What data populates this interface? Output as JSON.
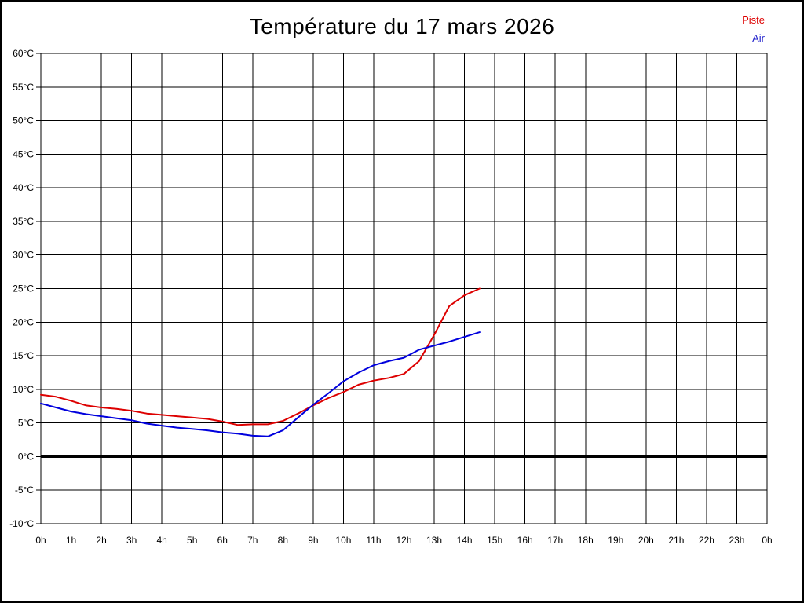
{
  "title": "Température du 17 mars 2026",
  "legend": {
    "items": [
      {
        "label": "Piste",
        "color": "#dd0000"
      },
      {
        "label": "Air",
        "color": "#2222cc"
      }
    ]
  },
  "chart_data": {
    "type": "line",
    "title": "Température du 17 mars 2026",
    "xlabel": "",
    "ylabel": "",
    "xlim": [
      0,
      24
    ],
    "ylim": [
      -10,
      60
    ],
    "x_tick_step": 1,
    "y_tick_step": 5,
    "grid": true,
    "zero_line_value": 0,
    "legend_position": "top-right",
    "x_tick_labels": [
      "0h",
      "1h",
      "2h",
      "3h",
      "4h",
      "5h",
      "6h",
      "7h",
      "8h",
      "9h",
      "10h",
      "11h",
      "12h",
      "13h",
      "14h",
      "15h",
      "16h",
      "17h",
      "18h",
      "19h",
      "20h",
      "21h",
      "22h",
      "23h",
      "0h"
    ],
    "y_tick_labels": [
      "60°C",
      "55°C",
      "50°C",
      "45°C",
      "40°C",
      "35°C",
      "30°C",
      "25°C",
      "20°C",
      "15°C",
      "10°C",
      "5°C",
      "0°C",
      "-5°C",
      "-10°C"
    ],
    "x": [
      0,
      0.5,
      1,
      1.5,
      2,
      2.5,
      3,
      3.5,
      4,
      4.5,
      5,
      5.5,
      6,
      6.5,
      7,
      7.5,
      8,
      8.5,
      9,
      9.5,
      10,
      10.5,
      11,
      11.5,
      12,
      12.5,
      13,
      13.5,
      14,
      14.5
    ],
    "series": [
      {
        "name": "Piste",
        "color": "#dd0000",
        "values": [
          9.2,
          8.9,
          8.3,
          7.6,
          7.3,
          7.1,
          6.8,
          6.4,
          6.2,
          6.0,
          5.8,
          5.6,
          5.2,
          4.7,
          4.8,
          4.8,
          5.3,
          6.4,
          7.6,
          8.7,
          9.6,
          10.7,
          11.3,
          11.7,
          12.3,
          14.2,
          18.1,
          22.4,
          24.0,
          25.0
        ]
      },
      {
        "name": "Air",
        "color": "#0000dd",
        "values": [
          7.9,
          7.3,
          6.7,
          6.3,
          6.0,
          5.7,
          5.4,
          4.9,
          4.6,
          4.3,
          4.1,
          3.9,
          3.6,
          3.4,
          3.1,
          3.0,
          3.9,
          5.8,
          7.7,
          9.4,
          11.2,
          12.5,
          13.6,
          14.2,
          14.7,
          15.9,
          16.5,
          17.1,
          17.8,
          18.5
        ]
      }
    ]
  }
}
